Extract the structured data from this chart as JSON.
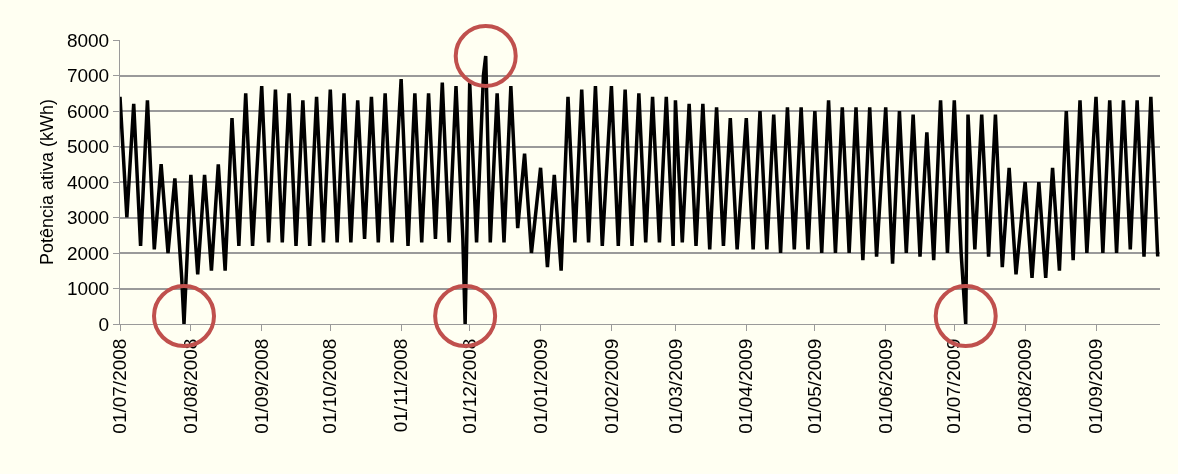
{
  "chart_data": {
    "type": "line",
    "ylabel": "Potência ativa (kWh)",
    "x": [
      "2008-07-01",
      "2008-07-04",
      "2008-07-07",
      "2008-07-10",
      "2008-07-13",
      "2008-07-16",
      "2008-07-19",
      "2008-07-22",
      "2008-07-25",
      "2008-07-28",
      "2008-07-29",
      "2008-08-01",
      "2008-08-04",
      "2008-08-07",
      "2008-08-10",
      "2008-08-13",
      "2008-08-16",
      "2008-08-19",
      "2008-08-22",
      "2008-08-25",
      "2008-08-28",
      "2008-09-01",
      "2008-09-04",
      "2008-09-07",
      "2008-09-10",
      "2008-09-13",
      "2008-09-16",
      "2008-09-19",
      "2008-09-22",
      "2008-09-25",
      "2008-09-28",
      "2008-10-01",
      "2008-10-04",
      "2008-10-07",
      "2008-10-10",
      "2008-10-13",
      "2008-10-16",
      "2008-10-19",
      "2008-10-22",
      "2008-10-25",
      "2008-10-28",
      "2008-11-01",
      "2008-11-04",
      "2008-11-07",
      "2008-11-10",
      "2008-11-13",
      "2008-11-16",
      "2008-11-19",
      "2008-11-22",
      "2008-11-25",
      "2008-11-28",
      "2008-11-29",
      "2008-12-01",
      "2008-12-04",
      "2008-12-07",
      "2008-12-08",
      "2008-12-10",
      "2008-12-13",
      "2008-12-16",
      "2008-12-19",
      "2008-12-22",
      "2008-12-25",
      "2008-12-28",
      "2009-01-01",
      "2009-01-04",
      "2009-01-07",
      "2009-01-10",
      "2009-01-13",
      "2009-01-16",
      "2009-01-19",
      "2009-01-22",
      "2009-01-25",
      "2009-01-28",
      "2009-02-01",
      "2009-02-04",
      "2009-02-07",
      "2009-02-10",
      "2009-02-13",
      "2009-02-16",
      "2009-02-19",
      "2009-02-22",
      "2009-02-25",
      "2009-02-28",
      "2009-03-01",
      "2009-03-04",
      "2009-03-07",
      "2009-03-10",
      "2009-03-13",
      "2009-03-16",
      "2009-03-19",
      "2009-03-22",
      "2009-03-25",
      "2009-03-28",
      "2009-04-01",
      "2009-04-04",
      "2009-04-07",
      "2009-04-10",
      "2009-04-13",
      "2009-04-16",
      "2009-04-19",
      "2009-04-22",
      "2009-04-25",
      "2009-04-28",
      "2009-05-01",
      "2009-05-04",
      "2009-05-07",
      "2009-05-10",
      "2009-05-13",
      "2009-05-16",
      "2009-05-19",
      "2009-05-22",
      "2009-05-25",
      "2009-05-28",
      "2009-06-01",
      "2009-06-04",
      "2009-06-07",
      "2009-06-10",
      "2009-06-13",
      "2009-06-16",
      "2009-06-19",
      "2009-06-22",
      "2009-06-25",
      "2009-06-28",
      "2009-07-01",
      "2009-07-04",
      "2009-07-06",
      "2009-07-07",
      "2009-07-10",
      "2009-07-13",
      "2009-07-16",
      "2009-07-19",
      "2009-07-22",
      "2009-07-25",
      "2009-07-28",
      "2009-08-01",
      "2009-08-04",
      "2009-08-07",
      "2009-08-10",
      "2009-08-13",
      "2009-08-16",
      "2009-08-19",
      "2009-08-22",
      "2009-08-25",
      "2009-08-28",
      "2009-09-01",
      "2009-09-04",
      "2009-09-07",
      "2009-09-10",
      "2009-09-13",
      "2009-09-16",
      "2009-09-19",
      "2009-09-22",
      "2009-09-25",
      "2009-09-28"
    ],
    "series": [
      {
        "color": "#000000",
        "values": [
          6400,
          3000,
          6200,
          2200,
          6300,
          2100,
          4500,
          2000,
          4100,
          1300,
          0,
          4200,
          1400,
          4200,
          1500,
          4500,
          1500,
          5800,
          2200,
          6500,
          2200,
          6700,
          2300,
          6600,
          2300,
          6500,
          2200,
          6300,
          2200,
          6400,
          2300,
          6600,
          2300,
          6500,
          2300,
          6300,
          2400,
          6400,
          2300,
          6500,
          2300,
          6900,
          2200,
          6500,
          2300,
          6500,
          2400,
          6800,
          2300,
          6700,
          2400,
          0,
          6800,
          2300,
          7000,
          7550,
          2300,
          6500,
          2300,
          6700,
          2700,
          4800,
          2000,
          4400,
          1600,
          4200,
          1500,
          6400,
          2300,
          6600,
          2300,
          6700,
          2200,
          6700,
          2200,
          6600,
          2200,
          6500,
          2300,
          6400,
          2300,
          6400,
          2200,
          6300,
          2300,
          6200,
          2200,
          6200,
          2100,
          6100,
          2200,
          5800,
          2100,
          5800,
          2100,
          6000,
          2100,
          5900,
          2000,
          6100,
          2100,
          6100,
          2100,
          6000,
          2000,
          6300,
          2000,
          6100,
          2000,
          6100,
          1800,
          6100,
          1900,
          6100,
          1700,
          6000,
          2000,
          5900,
          1900,
          5400,
          1800,
          6300,
          2000,
          6300,
          2000,
          0,
          5900,
          2100,
          5900,
          1900,
          5900,
          1600,
          4400,
          1400,
          4000,
          1300,
          4000,
          1300,
          4400,
          1500,
          6000,
          1800,
          6300,
          2000,
          6400,
          2000,
          6300,
          2000,
          6300,
          2100,
          6300,
          1900,
          6400,
          1900
        ]
      }
    ],
    "xlim": [
      "2008-07-01",
      "2009-09-29"
    ],
    "xticks": [
      {
        "value": "2008-07-01",
        "label": "01/07/2008"
      },
      {
        "value": "2008-08-01",
        "label": "01/08/2008"
      },
      {
        "value": "2008-09-01",
        "label": "01/09/2008"
      },
      {
        "value": "2008-10-01",
        "label": "01/10/2008"
      },
      {
        "value": "2008-11-01",
        "label": "01/11/2008"
      },
      {
        "value": "2008-12-01",
        "label": "01/12/2008"
      },
      {
        "value": "2009-01-01",
        "label": "01/01/2009"
      },
      {
        "value": "2009-02-01",
        "label": "01/02/2009"
      },
      {
        "value": "2009-03-01",
        "label": "01/03/2009"
      },
      {
        "value": "2009-04-01",
        "label": "01/04/2009"
      },
      {
        "value": "2009-05-01",
        "label": "01/05/2009"
      },
      {
        "value": "2009-06-01",
        "label": "01/06/2009"
      },
      {
        "value": "2009-07-01",
        "label": "01/07/2009"
      },
      {
        "value": "2009-08-01",
        "label": "01/08/2009"
      },
      {
        "value": "2009-09-01",
        "label": "01/09/2009"
      }
    ],
    "ylim": [
      0,
      8000
    ],
    "yticks": [
      0,
      1000,
      2000,
      3000,
      4000,
      5000,
      6000,
      7000,
      8000
    ],
    "grid": "y",
    "marker": "none",
    "line_style": "solid"
  }
}
